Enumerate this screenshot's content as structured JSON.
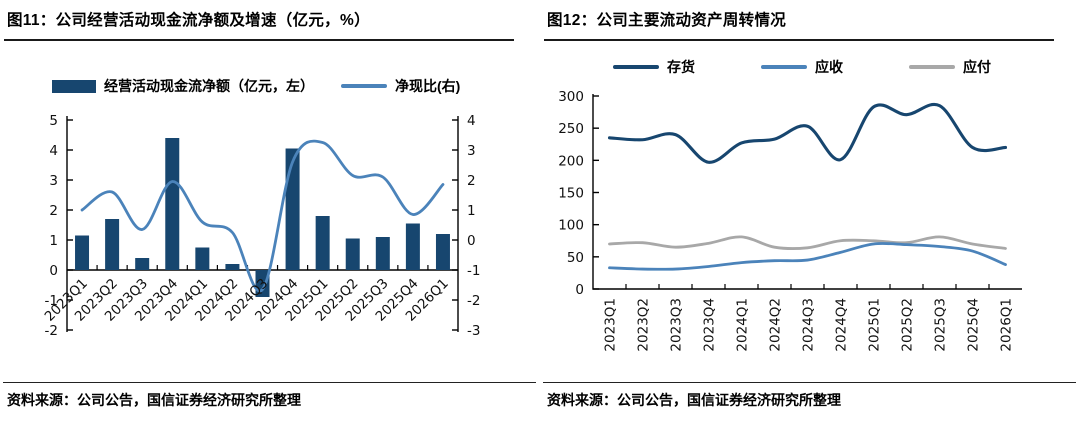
{
  "panels": [
    {
      "source": "资料来源：公司公告，国信证券经济研究所整理"
    },
    {
      "source": "资料来源：公司公告，国信证券经济研究所整理"
    }
  ],
  "chart_data": [
    {
      "type": "bar",
      "subtype": "bar+line dual axis",
      "title": "图11：公司经营活动现金流净额及增速（亿元，%）",
      "categories": [
        "2023Q1",
        "2023Q2",
        "2023Q3",
        "2023Q4",
        "2024Q1",
        "2024Q2",
        "2024Q3",
        "2024Q4",
        "2025Q1",
        "2025Q2",
        "2025Q3",
        "2025Q4",
        "2026Q1"
      ],
      "series": [
        {
          "name": "经营活动现金流净额（亿元，左）",
          "type": "bar",
          "axis": "left",
          "color": "#17466f",
          "values": [
            1.15,
            1.7,
            0.4,
            4.4,
            0.75,
            0.2,
            -0.9,
            4.05,
            1.8,
            1.05,
            1.1,
            1.55,
            1.2
          ]
        },
        {
          "name": "净现比(右)",
          "type": "line",
          "axis": "right",
          "color": "#4b83ba",
          "values": [
            1.0,
            1.6,
            0.35,
            1.95,
            0.6,
            0.25,
            -1.65,
            2.6,
            3.25,
            2.15,
            2.1,
            0.85,
            1.85
          ]
        }
      ],
      "left_ylim": [
        -2,
        5
      ],
      "right_ylim": [
        -3,
        4
      ],
      "left_yticks": [
        5,
        4,
        3,
        2,
        1,
        0,
        -1,
        -2
      ],
      "right_yticks": [
        4,
        3,
        2,
        1,
        0,
        -1,
        -2,
        -3
      ],
      "grid": false,
      "legend_position": "top",
      "xlabel": "",
      "ylabel": ""
    },
    {
      "type": "line",
      "title": "图12：公司主要流动资产周转情况",
      "categories": [
        "2023Q1",
        "2023Q2",
        "2023Q3",
        "2023Q4",
        "2024Q1",
        "2024Q2",
        "2024Q3",
        "2024Q4",
        "2025Q1",
        "2025Q2",
        "2025Q3",
        "2025Q4",
        "2026Q1"
      ],
      "series": [
        {
          "name": "存货",
          "color": "#17466f",
          "values": [
            235,
            232,
            240,
            197,
            227,
            233,
            253,
            201,
            283,
            271,
            285,
            220,
            220
          ]
        },
        {
          "name": "应收",
          "color": "#4b83ba",
          "values": [
            33,
            31,
            31,
            35,
            41,
            44,
            45,
            57,
            70,
            69,
            66,
            59,
            38
          ]
        },
        {
          "name": "应付",
          "color": "#a8a8a8",
          "values": [
            70,
            72,
            65,
            71,
            81,
            65,
            64,
            75,
            75,
            72,
            81,
            70,
            63
          ]
        }
      ],
      "ylim": [
        0,
        300
      ],
      "yticks": [
        300,
        250,
        200,
        150,
        100,
        50,
        0
      ],
      "grid": false,
      "legend_position": "top",
      "xlabel": "",
      "ylabel": ""
    }
  ]
}
